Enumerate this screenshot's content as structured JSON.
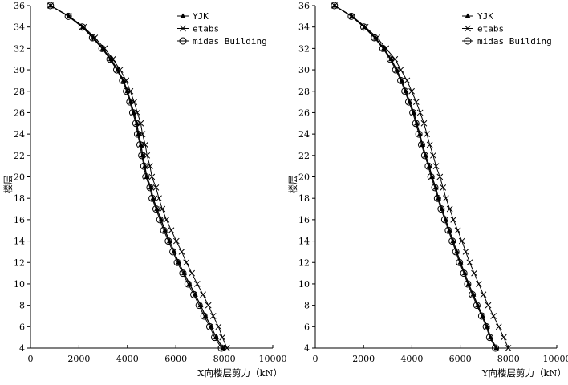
{
  "chart_data": [
    {
      "type": "line",
      "xlabel": "X向楼层剪力（kN）",
      "ylabel": "楼层",
      "xlim": [
        0,
        10000
      ],
      "ylim": [
        4,
        36
      ],
      "xticks": [
        0,
        2000,
        4000,
        6000,
        8000,
        10000
      ],
      "yticks": [
        4,
        6,
        8,
        10,
        12,
        14,
        16,
        18,
        20,
        22,
        24,
        26,
        28,
        30,
        32,
        34,
        36
      ],
      "grid": false,
      "legend_position": "top-right",
      "y": [
        36,
        35,
        34,
        33,
        32,
        31,
        30,
        29,
        28,
        27,
        26,
        25,
        24,
        23,
        22,
        21,
        20,
        19,
        18,
        17,
        16,
        15,
        14,
        13,
        12,
        11,
        10,
        9,
        8,
        7,
        6,
        5,
        4
      ],
      "series": [
        {
          "name": "YJK",
          "marker": "filled-triangle",
          "values": [
            830,
            1580,
            2160,
            2600,
            2990,
            3320,
            3600,
            3840,
            4000,
            4140,
            4260,
            4390,
            4460,
            4560,
            4630,
            4720,
            4800,
            4970,
            5060,
            5220,
            5390,
            5550,
            5740,
            5930,
            6110,
            6340,
            6560,
            6800,
            7020,
            7220,
            7460,
            7660,
            7940
          ]
        },
        {
          "name": "etabs",
          "marker": "x",
          "values": [
            830,
            1600,
            2200,
            2660,
            3060,
            3400,
            3700,
            3950,
            4120,
            4280,
            4410,
            4550,
            4620,
            4740,
            4810,
            4930,
            5010,
            5180,
            5300,
            5440,
            5610,
            5810,
            6020,
            6240,
            6430,
            6660,
            6880,
            7120,
            7340,
            7540,
            7760,
            7920,
            8110
          ]
        },
        {
          "name": "midas Building",
          "marker": "open-circle",
          "values": [
            820,
            1560,
            2130,
            2560,
            2950,
            3280,
            3560,
            3800,
            3960,
            4100,
            4220,
            4350,
            4420,
            4520,
            4590,
            4680,
            4760,
            4930,
            5020,
            5180,
            5340,
            5500,
            5690,
            5880,
            6060,
            6290,
            6500,
            6740,
            6960,
            7160,
            7400,
            7600,
            7880
          ]
        }
      ]
    },
    {
      "type": "line",
      "xlabel": "Y向楼层剪力（kN）",
      "ylabel": "楼层",
      "xlim": [
        0,
        10000
      ],
      "ylim": [
        4,
        36
      ],
      "xticks": [
        0,
        2000,
        4000,
        6000,
        8000,
        10000
      ],
      "yticks": [
        4,
        6,
        8,
        10,
        12,
        14,
        16,
        18,
        20,
        22,
        24,
        26,
        28,
        30,
        32,
        34,
        36
      ],
      "grid": false,
      "legend_position": "top-right",
      "y": [
        36,
        35,
        34,
        33,
        32,
        31,
        30,
        29,
        28,
        27,
        26,
        25,
        24,
        23,
        22,
        21,
        20,
        19,
        18,
        17,
        16,
        15,
        14,
        13,
        12,
        11,
        10,
        9,
        8,
        7,
        6,
        5,
        4
      ],
      "series": [
        {
          "name": "YJK",
          "marker": "filled-triangle",
          "values": [
            800,
            1510,
            2040,
            2490,
            2840,
            3140,
            3370,
            3580,
            3750,
            3910,
            4080,
            4200,
            4330,
            4440,
            4570,
            4720,
            4830,
            4990,
            5100,
            5250,
            5400,
            5550,
            5710,
            5860,
            6010,
            6190,
            6350,
            6540,
            6730,
            6930,
            7120,
            7260,
            7500
          ]
        },
        {
          "name": "etabs",
          "marker": "x",
          "values": [
            800,
            1530,
            2080,
            2560,
            2930,
            3300,
            3540,
            3800,
            3990,
            4180,
            4340,
            4500,
            4620,
            4740,
            4880,
            5000,
            5160,
            5290,
            5410,
            5570,
            5720,
            5900,
            6070,
            6230,
            6390,
            6580,
            6770,
            6960,
            7160,
            7380,
            7600,
            7800,
            7990
          ]
        },
        {
          "name": "midas Building",
          "marker": "open-circle",
          "values": [
            790,
            1490,
            2010,
            2450,
            2800,
            3100,
            3330,
            3540,
            3710,
            3870,
            4040,
            4160,
            4290,
            4400,
            4530,
            4680,
            4790,
            4950,
            5060,
            5210,
            5360,
            5510,
            5670,
            5820,
            5970,
            6150,
            6310,
            6500,
            6690,
            6890,
            7080,
            7220,
            7460
          ]
        }
      ]
    }
  ]
}
